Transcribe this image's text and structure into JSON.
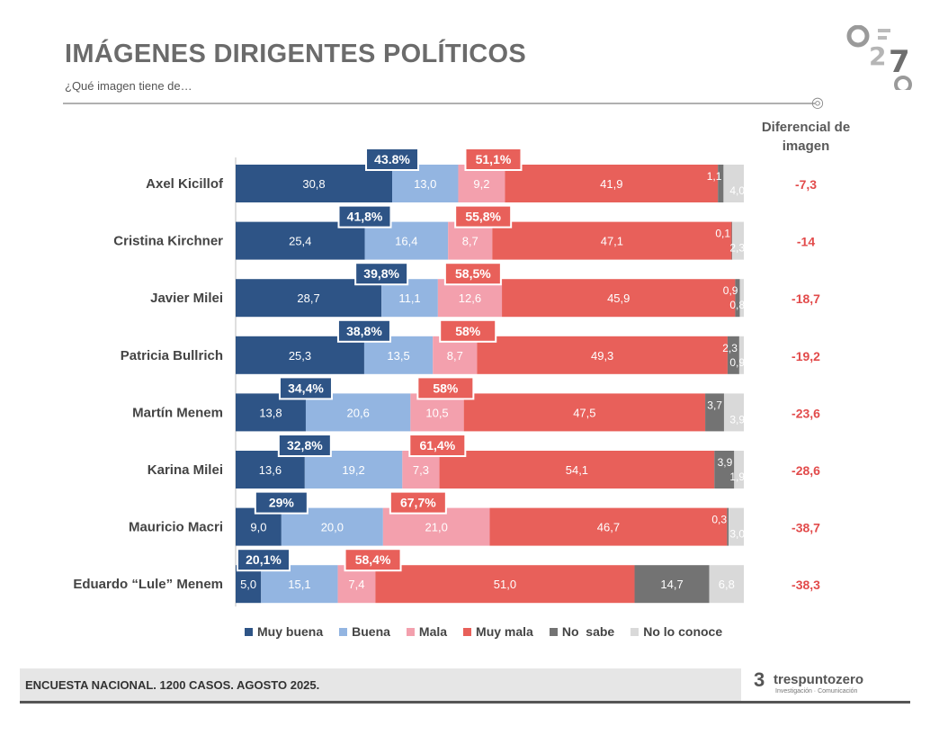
{
  "header": {
    "title": "IMÁGENES DIRIGENTES POLÍTICOS",
    "subtitle": "¿Qué imagen tiene de…",
    "diff_header_line1": "Diferencial de",
    "diff_header_line2": "imagen"
  },
  "colors": {
    "muy_buena": "#2e5486",
    "buena": "#93b5e1",
    "mala": "#f3a0ad",
    "muy_mala": "#e8605a",
    "no_sabe": "#737373",
    "no_lo_conoce": "#d9d9d9",
    "diff": "#e24b4b"
  },
  "chart_data": {
    "type": "bar",
    "orientation": "horizontal-stacked-100",
    "title": "IMÁGENES DIRIGENTES POLÍTICOS",
    "categories": [
      "Axel Kicillof",
      "Cristina Kirchner",
      "Javier Milei",
      "Patricia Bullrich",
      "Martín Menem",
      "Karina Milei",
      "Mauricio Macri",
      "Eduardo “Lule” Menem"
    ],
    "series": [
      {
        "name": "Muy buena",
        "key": "muy_buena",
        "values": [
          30.8,
          25.4,
          28.7,
          25.3,
          13.8,
          13.6,
          9.0,
          5.0
        ],
        "labels": [
          "30,8",
          "25,4",
          "28,7",
          "25,3",
          "13,8",
          "13,6",
          "9,0",
          "5,0"
        ]
      },
      {
        "name": "Buena",
        "key": "buena",
        "values": [
          13.0,
          16.4,
          11.1,
          13.5,
          20.6,
          19.2,
          20.0,
          15.1
        ],
        "labels": [
          "13,0",
          "16,4",
          "11,1",
          "13,5",
          "20,6",
          "19,2",
          "20,0",
          "15,1"
        ]
      },
      {
        "name": "Mala",
        "key": "mala",
        "values": [
          9.2,
          8.7,
          12.6,
          8.7,
          10.5,
          7.3,
          21.0,
          7.4
        ],
        "labels": [
          "9,2",
          "8,7",
          "12,6",
          "8,7",
          "10,5",
          "7,3",
          "21,0",
          "7,4"
        ]
      },
      {
        "name": "Muy mala",
        "key": "muy_mala",
        "values": [
          41.9,
          47.1,
          45.9,
          49.3,
          47.5,
          54.1,
          46.7,
          51.0
        ],
        "labels": [
          "41,9",
          "47,1",
          "45,9",
          "49,3",
          "47,5",
          "54,1",
          "46,7",
          "51,0"
        ]
      },
      {
        "name": "No  sabe",
        "key": "no_sabe",
        "values": [
          1.1,
          0.1,
          0.9,
          2.3,
          3.7,
          3.9,
          0.3,
          14.7
        ],
        "labels": [
          "1,1",
          "0,1",
          "0,9",
          "2,3",
          "3,7",
          "3,9",
          "0,3",
          "14,7"
        ]
      },
      {
        "name": "No lo conoce",
        "key": "no_lo_conoce",
        "values": [
          4.0,
          2.3,
          0.8,
          0.9,
          3.9,
          1.9,
          3.0,
          6.8
        ],
        "labels": [
          "4,0",
          "2,3",
          "0,8",
          "0,9",
          "3,9",
          "1,9",
          "3,0",
          "6,8"
        ]
      }
    ],
    "positive_totals": [
      "43.8%",
      "41,8%",
      "39,8%",
      "38,8%",
      "34,4%",
      "32,8%",
      "29%",
      "20,1%"
    ],
    "negative_totals": [
      "51,1%",
      "55,8%",
      "58,5%",
      "58%",
      "58%",
      "61,4%",
      "67,7%",
      "58,4%"
    ],
    "diferencial": [
      "-7,3",
      "-14",
      "-18,7",
      "-19,2",
      "-23,6",
      "-28,6",
      "-38,7",
      "-38,3"
    ],
    "xlim": [
      0,
      100
    ]
  },
  "legend": [
    {
      "label": "Muy buena",
      "key": "muy_buena"
    },
    {
      "label": "Buena",
      "key": "buena"
    },
    {
      "label": "Mala",
      "key": "mala"
    },
    {
      "label": "Muy mala",
      "key": "muy_mala"
    },
    {
      "label": "No  sabe",
      "key": "no_sabe"
    },
    {
      "label": "No lo conoce",
      "key": "no_lo_conoce"
    }
  ],
  "footer": {
    "survey": "ENCUESTA NACIONAL. 1200 CASOS. AGOSTO 2025.",
    "logo_mark": "3",
    "logo_name": "trespuntozero",
    "logo_tagline": "Investigación · Comunicación"
  }
}
